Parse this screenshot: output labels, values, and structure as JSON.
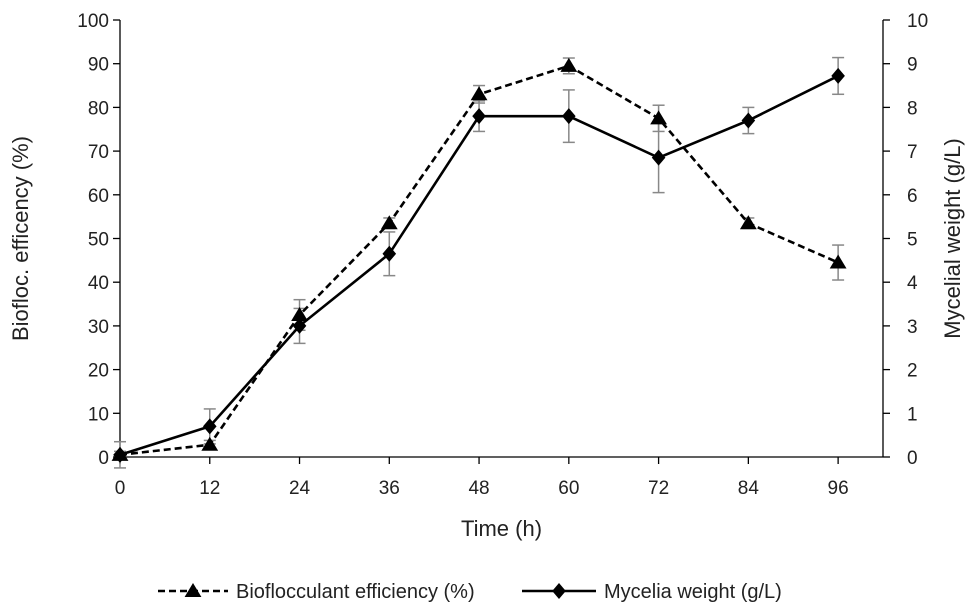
{
  "chart_data": {
    "type": "line",
    "xlabel": "Time (h)",
    "ylabel_left": "Biofloc. efficency (%)",
    "ylabel_right": "Mycelial weight (g/L)",
    "x": [
      0,
      12,
      24,
      36,
      48,
      60,
      72,
      84,
      96
    ],
    "x_ticks": [
      "0",
      "12",
      "24",
      "36",
      "48",
      "60",
      "72",
      "84",
      "96"
    ],
    "xlim": [
      0,
      102
    ],
    "ylim_left": [
      0,
      100
    ],
    "ylim_right": [
      0,
      10
    ],
    "y_ticks_left": [
      "0",
      "10",
      "20",
      "30",
      "40",
      "50",
      "60",
      "70",
      "80",
      "90",
      "100"
    ],
    "y_ticks_right": [
      "0",
      "1",
      "2",
      "3",
      "4",
      "5",
      "6",
      "7",
      "8",
      "9",
      "10"
    ],
    "grid": false,
    "legend_position": "bottom",
    "series": [
      {
        "name": "Bioflocculant efficiency (%)",
        "axis": "left",
        "marker": "triangle",
        "line_style": "dashed",
        "color": "#000000",
        "values": [
          0.5,
          2.8,
          32.5,
          53.5,
          83,
          89.5,
          77.5,
          53.5,
          44.5
        ],
        "errors": [
          0.8,
          1.0,
          3.5,
          1.2,
          2.0,
          1.8,
          3.0,
          1.2,
          4.0
        ]
      },
      {
        "name": "Mycelia weight (g/L)",
        "axis": "right",
        "marker": "diamond",
        "line_style": "solid",
        "color": "#000000",
        "values": [
          0.05,
          0.7,
          3.0,
          4.65,
          7.8,
          7.8,
          6.85,
          7.7,
          8.72
        ],
        "errors": [
          0.3,
          0.4,
          0.4,
          0.5,
          0.35,
          0.6,
          0.8,
          0.3,
          0.42
        ]
      }
    ]
  }
}
